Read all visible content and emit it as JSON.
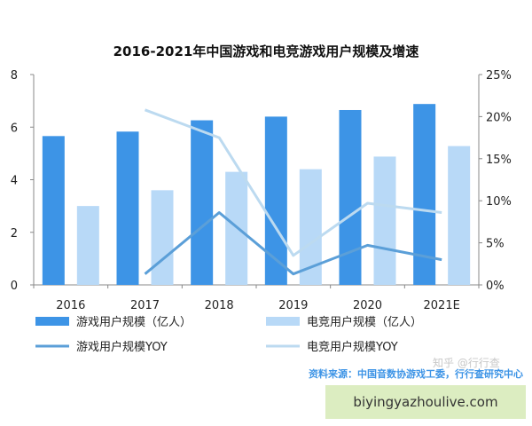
{
  "chart_data": {
    "type": "bar",
    "title": "2016-2021年中国游戏和电竞游戏用户规模及增速",
    "categories": [
      "2016",
      "2017",
      "2018",
      "2019",
      "2020",
      "2021E"
    ],
    "ylim": [
      0,
      8
    ],
    "y_ticks": [
      "0",
      "2",
      "4",
      "6",
      "8"
    ],
    "y2lim": [
      0,
      25
    ],
    "y2_ticks": [
      "0%",
      "5%",
      "10%",
      "15%",
      "20%",
      "25%"
    ],
    "grid": false,
    "legend_position": "bottom",
    "series": [
      {
        "name": "游戏用户规模（亿人）",
        "kind": "bar",
        "axis": "left",
        "color": "#3d94e6",
        "values": [
          5.66,
          5.83,
          6.26,
          6.4,
          6.65,
          6.88
        ]
      },
      {
        "name": "电竞用户规模（亿人）",
        "kind": "bar",
        "axis": "left",
        "color": "#b8d9f7",
        "values": [
          3.0,
          3.6,
          4.3,
          4.4,
          4.88,
          5.28
        ]
      },
      {
        "name": "游戏用户规模YOY",
        "kind": "line",
        "axis": "right",
        "color": "#5b9fd8",
        "values": [
          null,
          1.3,
          8.6,
          1.3,
          4.7,
          3.0
        ]
      },
      {
        "name": "电竞用户规模YOY",
        "kind": "line",
        "axis": "right",
        "color": "#bcdaf0",
        "values": [
          null,
          20.8,
          17.5,
          3.5,
          9.7,
          8.6
        ]
      }
    ]
  },
  "source": {
    "text": "资料来源：中国音数协游戏工委，行行查研究中心",
    "color": "#3d94e6"
  },
  "watermark": "知乎 @行行查",
  "url_banner": {
    "text": "biyingyazhoulive.com",
    "color": "#dcedc1"
  }
}
